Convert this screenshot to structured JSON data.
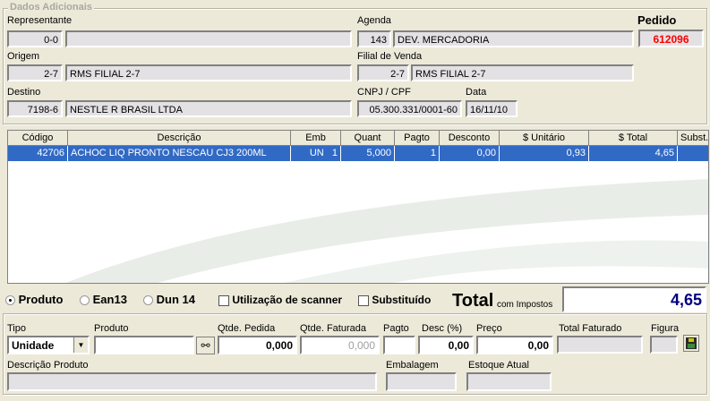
{
  "dados": {
    "legend": "Dados Adicionais",
    "representante": {
      "label": "Representante",
      "code": "0-0",
      "name": ""
    },
    "agenda": {
      "label": "Agenda",
      "code": "143",
      "name": "DEV. MERCADORIA"
    },
    "pedido": {
      "label": "Pedido",
      "value": "612096",
      "color": "#ff0000"
    },
    "origem": {
      "label": "Origem",
      "code": "2-7",
      "name": "RMS FILIAL 2-7"
    },
    "filial": {
      "label": "Filial de Venda",
      "code": "2-7",
      "name": "RMS FILIAL 2-7"
    },
    "destino": {
      "label": "Destino",
      "code": "7198-6",
      "name": "NESTLE R BRASIL LTDA"
    },
    "cnpj": {
      "label": "CNPJ / CPF",
      "value": "05.300.331/0001-60"
    },
    "data": {
      "label": "Data",
      "value": "16/11/10"
    }
  },
  "grid": {
    "columns": [
      "Código",
      "Descrição",
      "Emb",
      "Quant",
      "Pagto",
      "Desconto",
      "$ Unitário",
      "$ Total",
      "Subst."
    ],
    "rows": [
      [
        "42706",
        "ACHOC LIQ PRONTO NESCAU CJ3 200ML",
        "UN   1",
        "5,000",
        "1",
        "0,00",
        "0,93",
        "4,65",
        ""
      ]
    ],
    "selected_color": "#316ac5"
  },
  "options": {
    "produto": "Produto",
    "ean13": "Ean13",
    "dun14": "Dun 14",
    "scanner": "Utilização de scanner",
    "substituido": "Substituído",
    "selected": "Produto"
  },
  "total": {
    "label": "Total",
    "sub": "com Impostos",
    "value": "4,65"
  },
  "entry": {
    "tipo_label": "Tipo",
    "tipo_value": "Unidade",
    "produto_label": "Produto",
    "produto_value": "",
    "qtde_pedida_label": "Qtde. Pedida",
    "qtde_pedida": "0,000",
    "qtde_faturada_label": "Qtde. Faturada",
    "qtde_faturada": "0,000",
    "pagto_label": "Pagto",
    "pagto": "",
    "desc_label": "Desc (%)",
    "desc": "0,00",
    "preco_label": "Preço",
    "preco": "0,00",
    "total_faturado_label": "Total Faturado",
    "total_faturado": "",
    "figura_label": "Figura",
    "figura": "",
    "descricao_label": "Descrição Produto",
    "descricao": "",
    "embalagem_label": "Embalagem",
    "embalagem": "",
    "estoque_label": "Estoque Atual",
    "estoque": ""
  }
}
